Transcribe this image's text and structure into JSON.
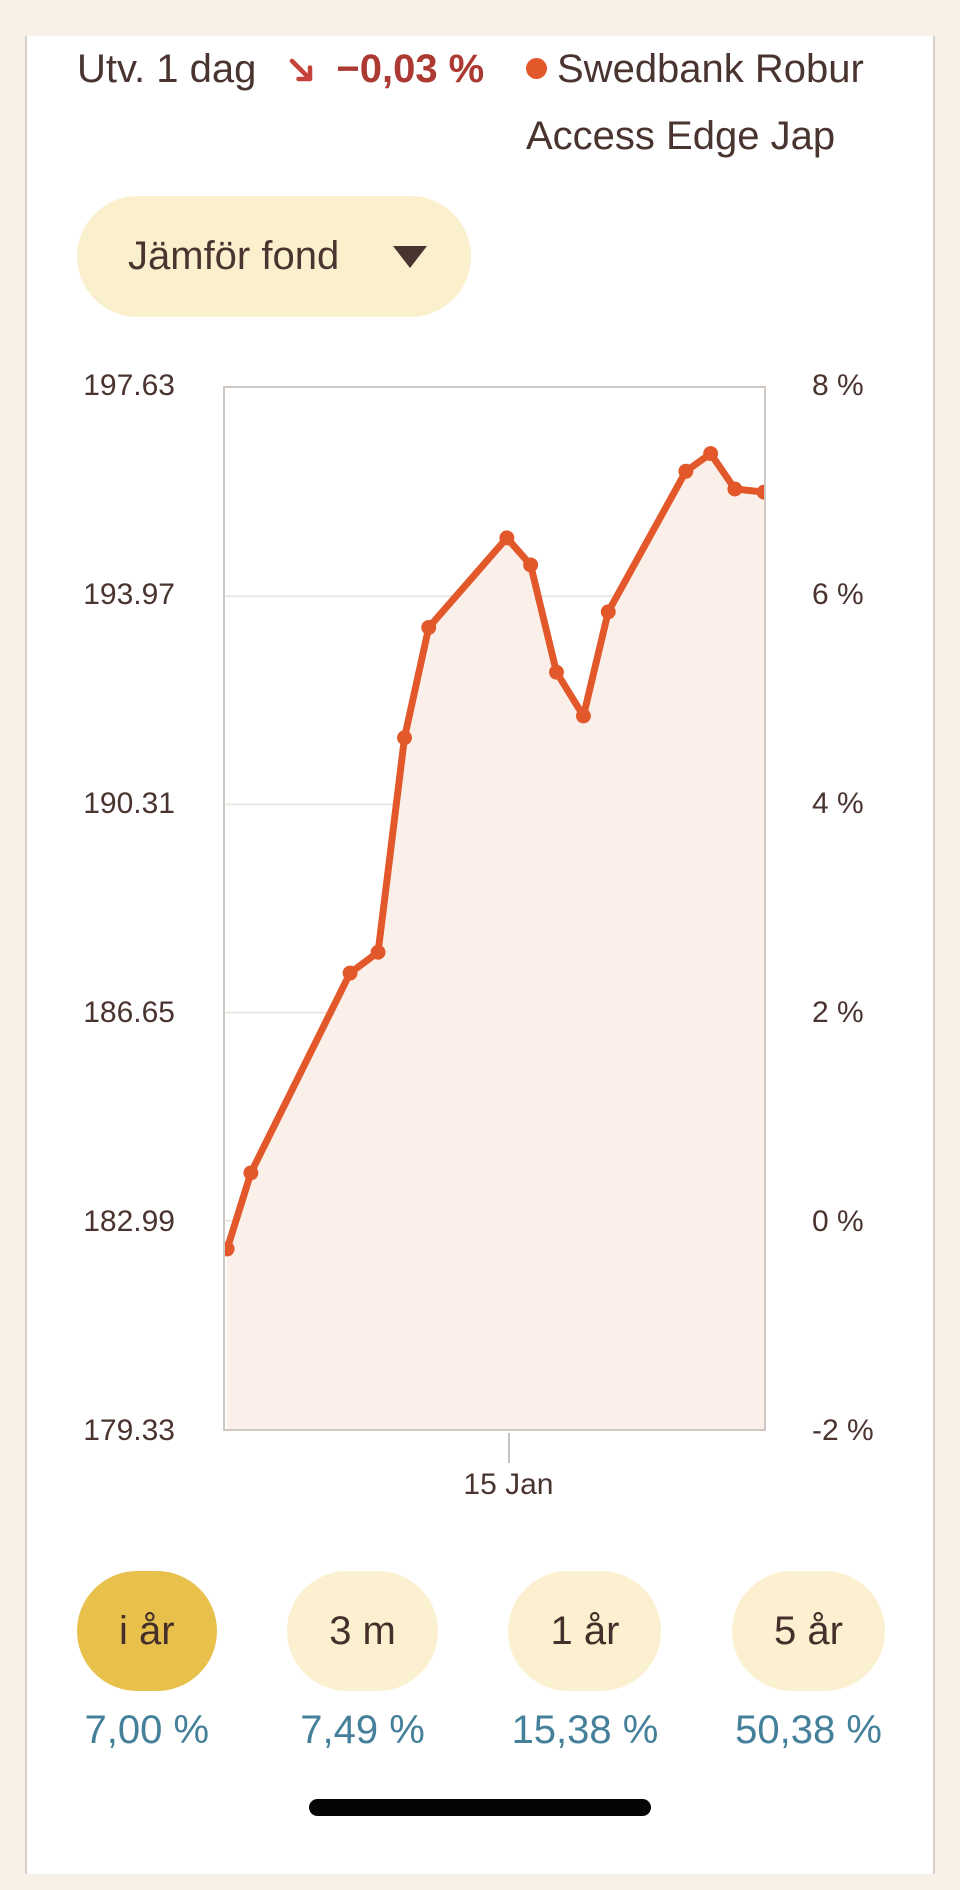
{
  "header": {
    "label": "Utv. 1 dag",
    "change": "−0,03 %",
    "trend_icon": "arrow-down-right",
    "legend": {
      "series_name": "Swedbank Robur Access Edge Jap",
      "dot_color": "#e2582a"
    }
  },
  "compare_button": {
    "label": "Jämför fond",
    "icon": "caret-down"
  },
  "chart_data": {
    "type": "line",
    "series_name": "Swedbank Robur Access Edge Jap",
    "title": "Fund development, year to date",
    "left_axis_labels": [
      "197.63",
      "193.97",
      "190.31",
      "186.65",
      "182.99",
      "179.33"
    ],
    "right_axis_labels": [
      "8 %",
      "6 %",
      "4 %",
      "2 %",
      "0 %",
      "-2 %"
    ],
    "right_axis_range_pct": [
      8,
      -2
    ],
    "grid_pcts": [
      6,
      4,
      2,
      0
    ],
    "x_tick": {
      "label": "15 Jan",
      "x_frac": 0.522
    },
    "line_color": "#e2582a",
    "fill_color": "#fbf0e9",
    "grid_color": "#eae6e2",
    "points": [
      {
        "x_frac": 0.004,
        "pct": -0.27,
        "price": 182.5
      },
      {
        "x_frac": 0.048,
        "pct": 0.46,
        "price": 183.83
      },
      {
        "x_frac": 0.232,
        "pct": 2.38,
        "price": 187.35
      },
      {
        "x_frac": 0.284,
        "pct": 2.58,
        "price": 187.71
      },
      {
        "x_frac": 0.333,
        "pct": 4.64,
        "price": 191.48
      },
      {
        "x_frac": 0.378,
        "pct": 5.7,
        "price": 193.42
      },
      {
        "x_frac": 0.523,
        "pct": 6.56,
        "price": 194.99
      },
      {
        "x_frac": 0.567,
        "pct": 6.3,
        "price": 194.52
      },
      {
        "x_frac": 0.615,
        "pct": 5.27,
        "price": 192.63
      },
      {
        "x_frac": 0.665,
        "pct": 4.85,
        "price": 191.86
      },
      {
        "x_frac": 0.711,
        "pct": 5.85,
        "price": 193.7
      },
      {
        "x_frac": 0.855,
        "pct": 7.2,
        "price": 196.17
      },
      {
        "x_frac": 0.901,
        "pct": 7.37,
        "price": 196.48
      },
      {
        "x_frac": 0.946,
        "pct": 7.03,
        "price": 195.85
      },
      {
        "x_frac": 1.0,
        "pct": 7.0,
        "price": 195.8
      }
    ]
  },
  "period_buttons": [
    {
      "label": "i år",
      "value": "7,00 %",
      "selected": true
    },
    {
      "label": "3 m",
      "value": "7,49 %",
      "selected": false
    },
    {
      "label": "1 år",
      "value": "15,38 %",
      "selected": false
    },
    {
      "label": "5 år",
      "value": "50,38 %",
      "selected": false
    }
  ],
  "colors": {
    "accent_orange": "#e2582a",
    "trend_red": "#c5413a",
    "negative_red": "#ac3a32",
    "text_brown": "#4a3430",
    "pill_cream": "#fbf0cf",
    "pill_selected_amber": "#e8c14d",
    "value_teal": "#45809b",
    "page_cream": "#f7f0e6"
  }
}
